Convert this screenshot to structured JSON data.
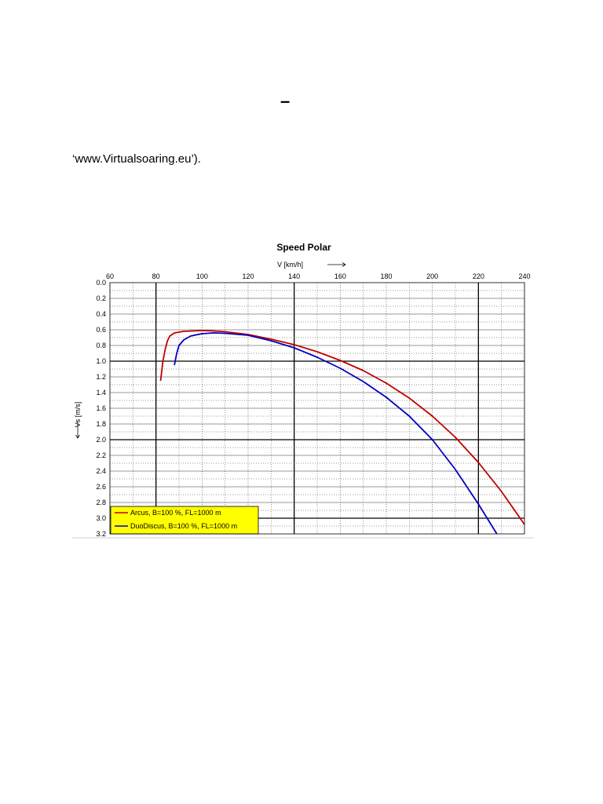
{
  "doc": {
    "dash": "–",
    "source_text": "‘www.Virtualsoaring.eu’)."
  },
  "chart_data": {
    "type": "line",
    "title": "Speed Polar",
    "xlabel": "V [km/h]",
    "ylabel": "Vs [m/s]",
    "xlim": [
      60,
      240
    ],
    "ylim": [
      0.0,
      3.2
    ],
    "y_inverted": true,
    "x_ticks": [
      60,
      80,
      100,
      120,
      140,
      160,
      180,
      200,
      220,
      240
    ],
    "y_ticks": [
      "0.0",
      "0.2",
      "0.4",
      "0.6",
      "0.8",
      "1.0",
      "1.2",
      "1.4",
      "1.6",
      "1.8",
      "2.0",
      "2.2",
      "2.4",
      "2.6",
      "2.8",
      "3.0",
      "3.2"
    ],
    "grid": true,
    "legend_position": "bottom-left",
    "legend_color": "#ffff00",
    "series": [
      {
        "name": "Arcus, B=100 %, FL=1000 m",
        "color": "#c00000",
        "x": [
          82,
          83,
          84,
          85,
          86,
          88,
          92,
          96,
          100,
          105,
          110,
          120,
          130,
          140,
          150,
          160,
          170,
          180,
          190,
          200,
          210,
          220,
          230,
          240
        ],
        "y": [
          1.25,
          1.0,
          0.85,
          0.74,
          0.68,
          0.64,
          0.62,
          0.615,
          0.61,
          0.615,
          0.625,
          0.66,
          0.72,
          0.79,
          0.88,
          0.99,
          1.12,
          1.28,
          1.47,
          1.7,
          1.97,
          2.29,
          2.66,
          3.08
        ]
      },
      {
        "name": "DuoDiscus, B=100 %, FL=1000 m",
        "color": "#0000c0",
        "x": [
          88,
          89,
          90,
          92,
          95,
          100,
          105,
          110,
          120,
          130,
          140,
          150,
          160,
          170,
          180,
          190,
          200,
          210,
          220,
          228
        ],
        "y": [
          1.05,
          0.9,
          0.8,
          0.73,
          0.68,
          0.65,
          0.64,
          0.645,
          0.67,
          0.74,
          0.83,
          0.95,
          1.09,
          1.26,
          1.46,
          1.7,
          2.0,
          2.38,
          2.82,
          3.2
        ]
      }
    ]
  }
}
